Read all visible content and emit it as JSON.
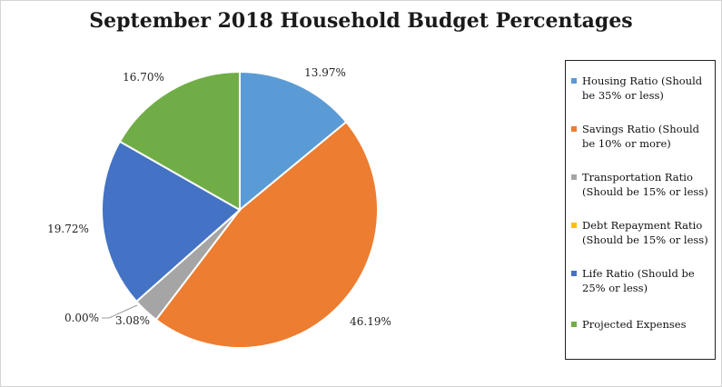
{
  "title": "September 2018 Household Budget Percentages",
  "chart_data": {
    "type": "pie",
    "title": "September 2018 Household Budget Percentages",
    "legend_position": "right",
    "slices": [
      {
        "name": "Housing Ratio (Should be 35% or less)",
        "value": 13.97,
        "label": "13.97%",
        "color": "#5b9bd5"
      },
      {
        "name": "Savings Ratio (Should be 10% or more)",
        "value": 46.19,
        "label": "46.19%",
        "color": "#ed7d31"
      },
      {
        "name": "Transportation Ratio (Should be 15% or less)",
        "value": 3.08,
        "label": "3.08%",
        "color": "#a5a5a5"
      },
      {
        "name": "Debt Repayment Ratio (Should be 15% or less)",
        "value": 0.0,
        "label": "0.00%",
        "color": "#ffc000"
      },
      {
        "name": "Life Ratio (Should be 25% or less)",
        "value": 19.72,
        "label": "19.72%",
        "color": "#4472c4"
      },
      {
        "name": "Projected Expenses",
        "value": 16.7,
        "label": "16.70%",
        "color": "#70ad47"
      }
    ]
  }
}
